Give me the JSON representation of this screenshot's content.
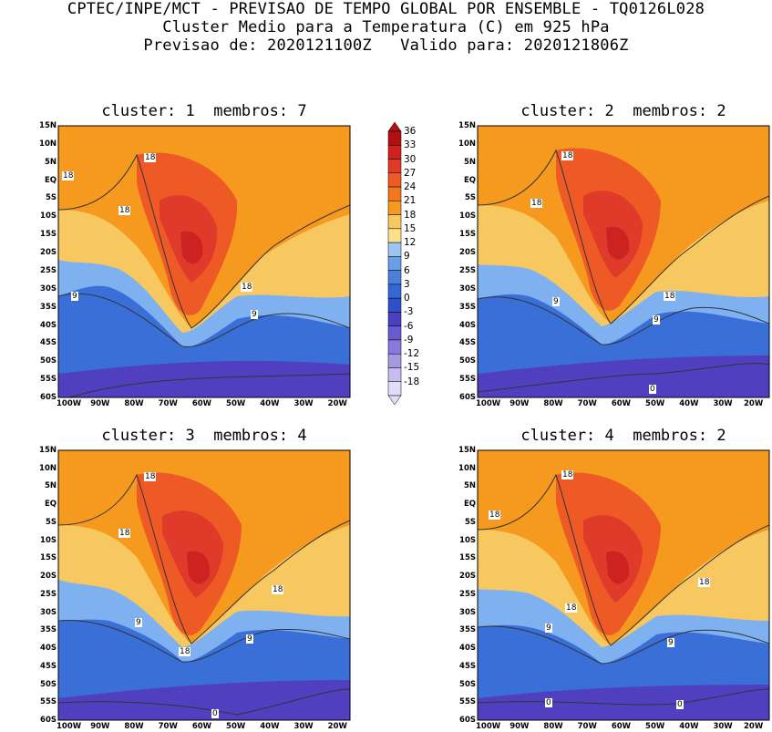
{
  "header": {
    "line1": "CPTEC/INPE/MCT - PREVISAO DE TEMPO GLOBAL POR ENSEMBLE - TQ0126L028",
    "line2": "Cluster Medio para a Temperatura (C) em 925 hPa",
    "line3": "Previsao de: 2020121100Z   Valido para: 2020121806Z"
  },
  "panels": [
    {
      "title": "cluster: 1  membros: 7",
      "contour_labels": [
        "18",
        "18",
        "18",
        "18",
        "9",
        "9"
      ]
    },
    {
      "title": "cluster: 2  membros: 2",
      "contour_labels": [
        "18",
        "18",
        "18",
        "9",
        "9",
        "0"
      ]
    },
    {
      "title": "cluster: 3  membros: 4",
      "contour_labels": [
        "18",
        "18",
        "18",
        "9",
        "9",
        "18",
        "0"
      ]
    },
    {
      "title": "cluster: 4  membros: 2",
      "contour_labels": [
        "18",
        "18",
        "18",
        "18",
        "9",
        "9",
        "0",
        "0"
      ]
    }
  ],
  "axes": {
    "lat_labels": [
      "15N",
      "10N",
      "5N",
      "EQ",
      "5S",
      "10S",
      "15S",
      "20S",
      "25S",
      "30S",
      "35S",
      "40S",
      "45S",
      "50S",
      "55S",
      "60S"
    ],
    "lon_labels": [
      "100W",
      "90W",
      "80W",
      "70W",
      "60W",
      "50W",
      "40W",
      "30W",
      "20W"
    ]
  },
  "colorbar": {
    "labels": [
      "36",
      "33",
      "30",
      "27",
      "24",
      "21",
      "18",
      "15",
      "12",
      "9",
      "6",
      "3",
      "0",
      "-3",
      "-6",
      "-9",
      "-12",
      "-15",
      "-18"
    ],
    "colors": [
      "#b01010",
      "#cc2222",
      "#e03a2a",
      "#ee5a25",
      "#f2761f",
      "#f59a1f",
      "#f8c860",
      "#fae08a",
      "#9ec4f0",
      "#6a9ee8",
      "#4a7fdc",
      "#3468d0",
      "#3050c8",
      "#4a40c0",
      "#6a5ad0",
      "#8a78dc",
      "#a898e4",
      "#c8bcee",
      "#e2dcf6"
    ]
  },
  "colors": {
    "warm_hot": "#b01010",
    "warm": "#e84a24",
    "orange": "#f59a1f",
    "yellow": "#f8c860",
    "light_blue": "#7fb0f0",
    "blue": "#3a6fd8",
    "purple": "#5040c0"
  }
}
